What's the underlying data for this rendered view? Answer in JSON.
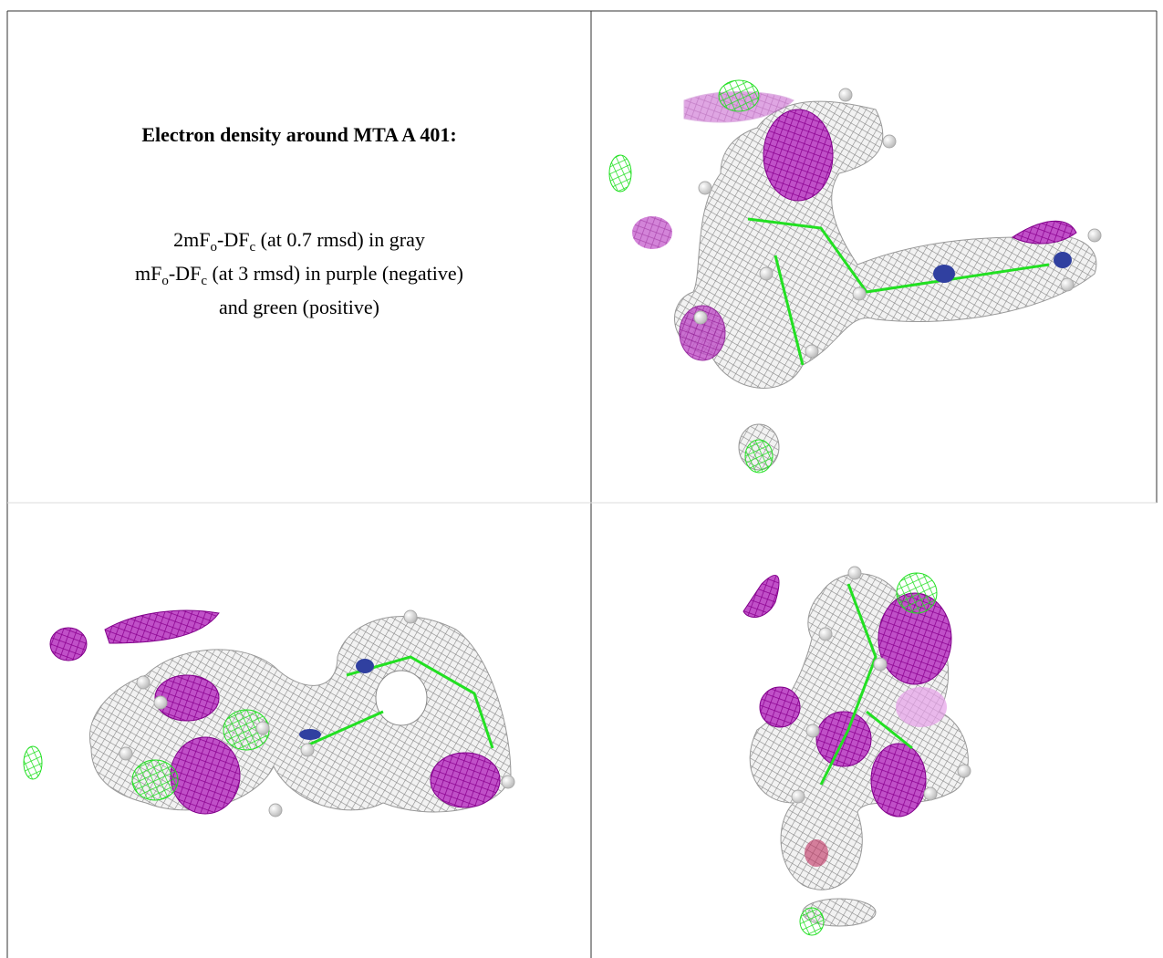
{
  "panel": {
    "title": "Electron density around MTA A 401:",
    "caption": [
      [
        {
          "text": "2mF"
        },
        {
          "sub": "o"
        },
        {
          "text": "-DF"
        },
        {
          "sub": "c"
        },
        {
          "text": " (at 0.7 rmsd) in gray"
        }
      ],
      [
        {
          "text": "mF"
        },
        {
          "sub": "o"
        },
        {
          "text": "-DF"
        },
        {
          "sub": "c"
        },
        {
          "text": " (at 3 rmsd) in purple (negative)"
        }
      ],
      [
        {
          "text": "and green (positive)"
        }
      ]
    ]
  }
}
